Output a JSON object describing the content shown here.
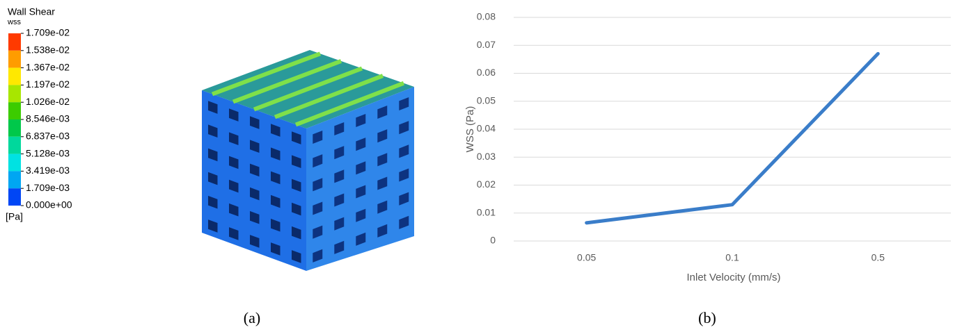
{
  "legend": {
    "title": "Wall Shear",
    "subtitle": "wss",
    "labels": [
      "1.709e-02",
      "1.538e-02",
      "1.367e-02",
      "1.197e-02",
      "1.026e-02",
      "8.546e-03",
      "6.837e-03",
      "5.128e-03",
      "3.419e-03",
      "1.709e-03",
      "0.000e+00"
    ],
    "colors": [
      "#ff3a00",
      "#ff9c00",
      "#ffe800",
      "#a8e600",
      "#3ccc00",
      "#00c84a",
      "#00d89c",
      "#00e2e2",
      "#00a6f2",
      "#0046f5"
    ],
    "unit": "[Pa]"
  },
  "panel_labels": {
    "a": "(a)",
    "b": "(b)"
  },
  "chart_data": {
    "type": "line",
    "categories": [
      "0.05",
      "0.1",
      "0.5"
    ],
    "values": [
      0.0065,
      0.013,
      0.067
    ],
    "color": "#3a7dc9",
    "ylim": [
      0,
      0.08
    ],
    "yticks": [
      0,
      0.01,
      0.02,
      0.03,
      0.04,
      0.05,
      0.06,
      0.07,
      0.08
    ],
    "grid": true,
    "xlabel": "Inlet Velocity (mm/s)",
    "ylabel": "WSS (Pa)"
  }
}
